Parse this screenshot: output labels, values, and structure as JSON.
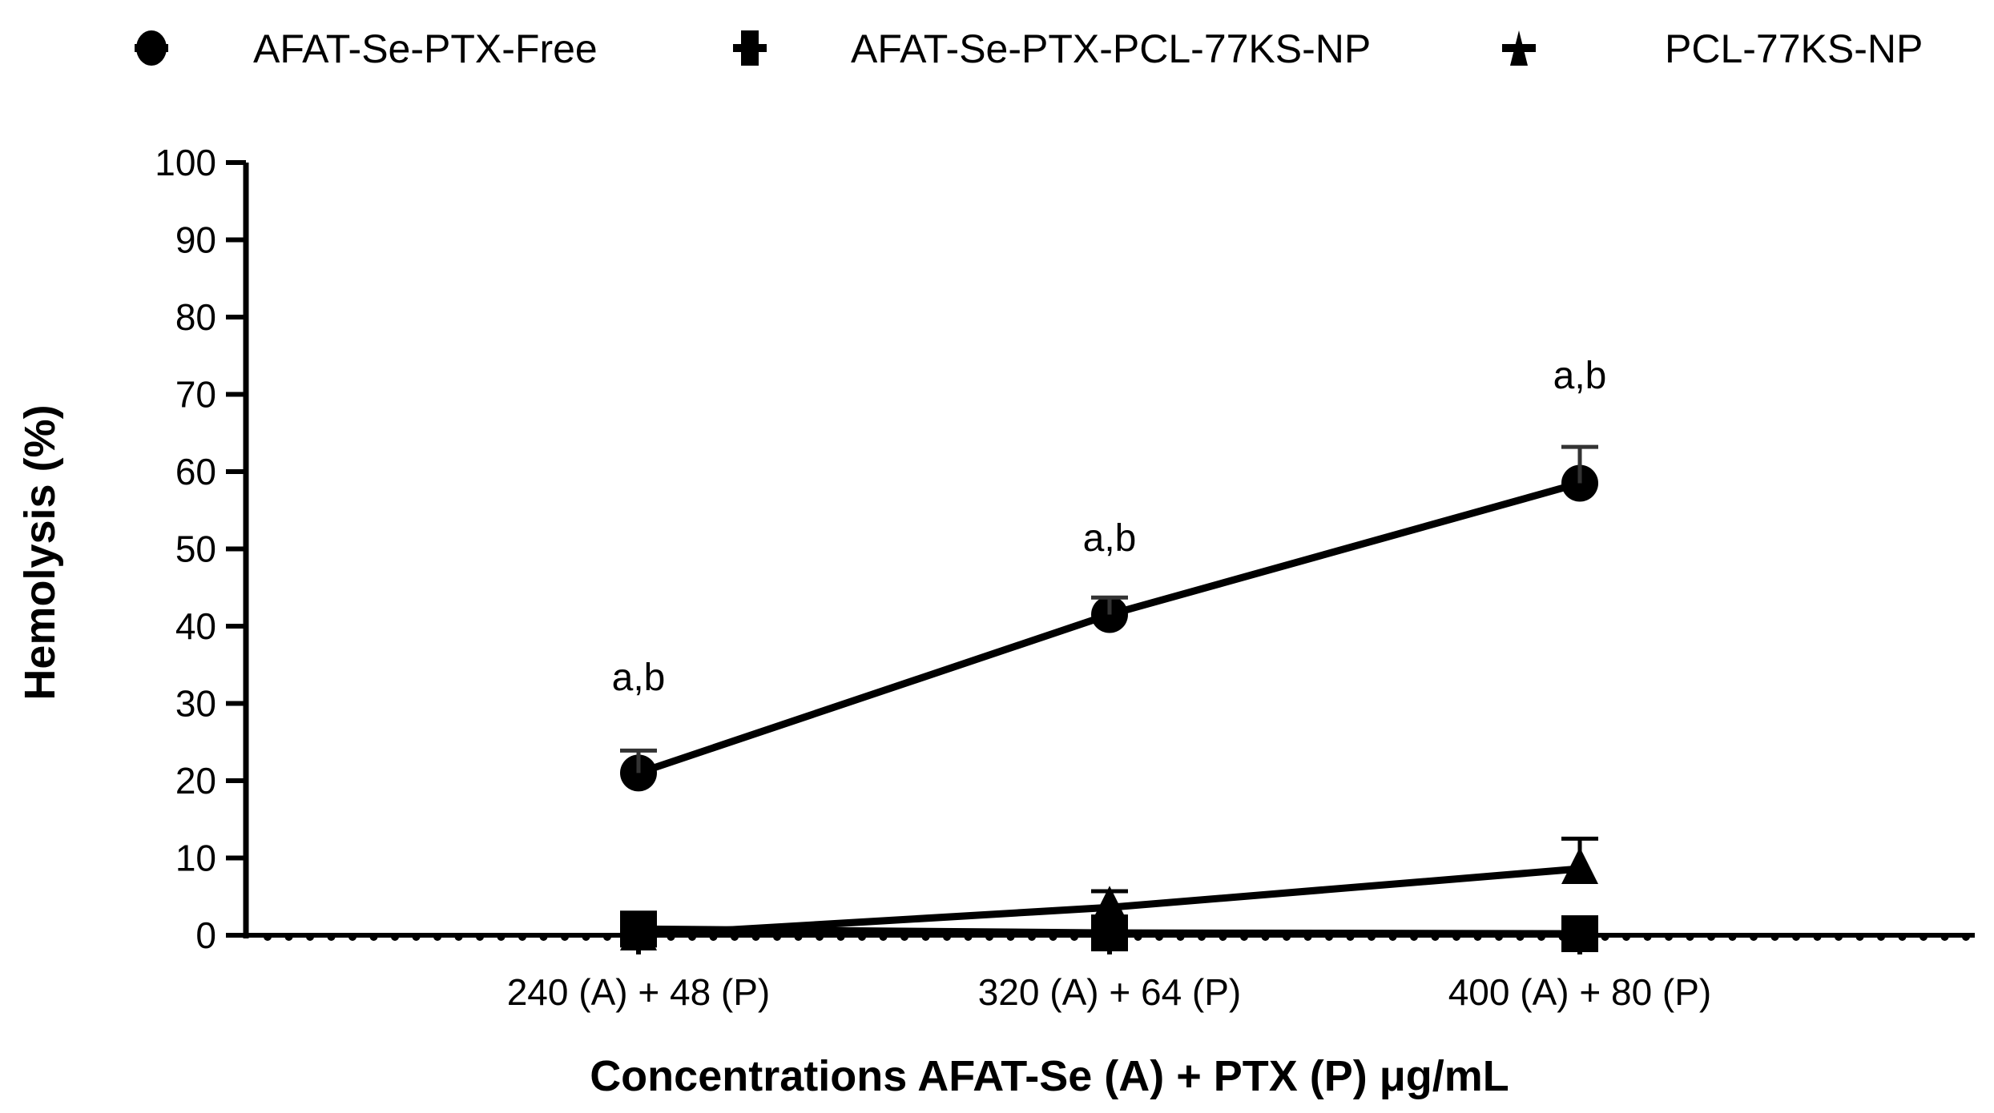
{
  "chart_data": {
    "type": "line",
    "title": "",
    "xlabel": "Concentrations AFAT-Se (A) + PTX (P) μg/mL",
    "ylabel": "Hemolysis (%)",
    "categories": [
      "240 (A) + 48 (P)",
      "320 (A) + 64 (P)",
      "400 (A) + 80 (P)"
    ],
    "ylim": [
      0,
      100
    ],
    "yticks": [
      0,
      10,
      20,
      30,
      40,
      50,
      60,
      70,
      80,
      90,
      100
    ],
    "grid": false,
    "legend_position": "top",
    "series": [
      {
        "name": "AFAT-Se-PTX-Free",
        "marker": "circle",
        "values": [
          21.0,
          41.5,
          58.5
        ],
        "error": [
          2.9,
          2.2,
          4.7
        ]
      },
      {
        "name": "AFAT-Se-PTX-PCL-77KS-NP",
        "marker": "square",
        "values": [
          0.8,
          0.3,
          0.2
        ],
        "error": [
          0.0,
          0.0,
          0.0
        ]
      },
      {
        "name": "PCL-77KS-NP",
        "marker": "triangle",
        "values": [
          0.0,
          3.6,
          8.6
        ],
        "error": [
          0.0,
          2.1,
          3.9
        ]
      }
    ],
    "annotations": [
      {
        "text": "a,b",
        "category": "240 (A) + 48 (P)",
        "series": "AFAT-Se-PTX-Free"
      },
      {
        "text": "a,b",
        "category": "320 (A) + 64 (P)",
        "series": "AFAT-Se-PTX-Free"
      },
      {
        "text": "a,b",
        "category": "400 (A) + 80 (P)",
        "series": "AFAT-Se-PTX-Free"
      }
    ]
  },
  "legend": {
    "items": [
      {
        "label": "AFAT-Se-PTX-Free",
        "icon": "circle-marker-icon"
      },
      {
        "label": "AFAT-Se-PTX-PCL-77KS-NP",
        "icon": "square-marker-icon"
      },
      {
        "label": "PCL-77KS-NP",
        "icon": "triangle-marker-icon"
      }
    ]
  },
  "axes": {
    "y_title": "Hemolysis (%)",
    "x_title": "Concentrations AFAT-Se (A) + PTX (P) μg/mL",
    "y_tick_labels": [
      "0",
      "10",
      "20",
      "30",
      "40",
      "50",
      "60",
      "70",
      "80",
      "90",
      "100"
    ],
    "x_tick_labels": [
      "240 (A) + 48 (P)",
      "320 (A) + 64 (P)",
      "400 (A) + 80 (P)"
    ]
  },
  "annotations": [
    "a,b",
    "a,b",
    "a,b"
  ],
  "colors": {
    "ink": "#000000",
    "errorbar": "#333333",
    "background": "#ffffff"
  }
}
